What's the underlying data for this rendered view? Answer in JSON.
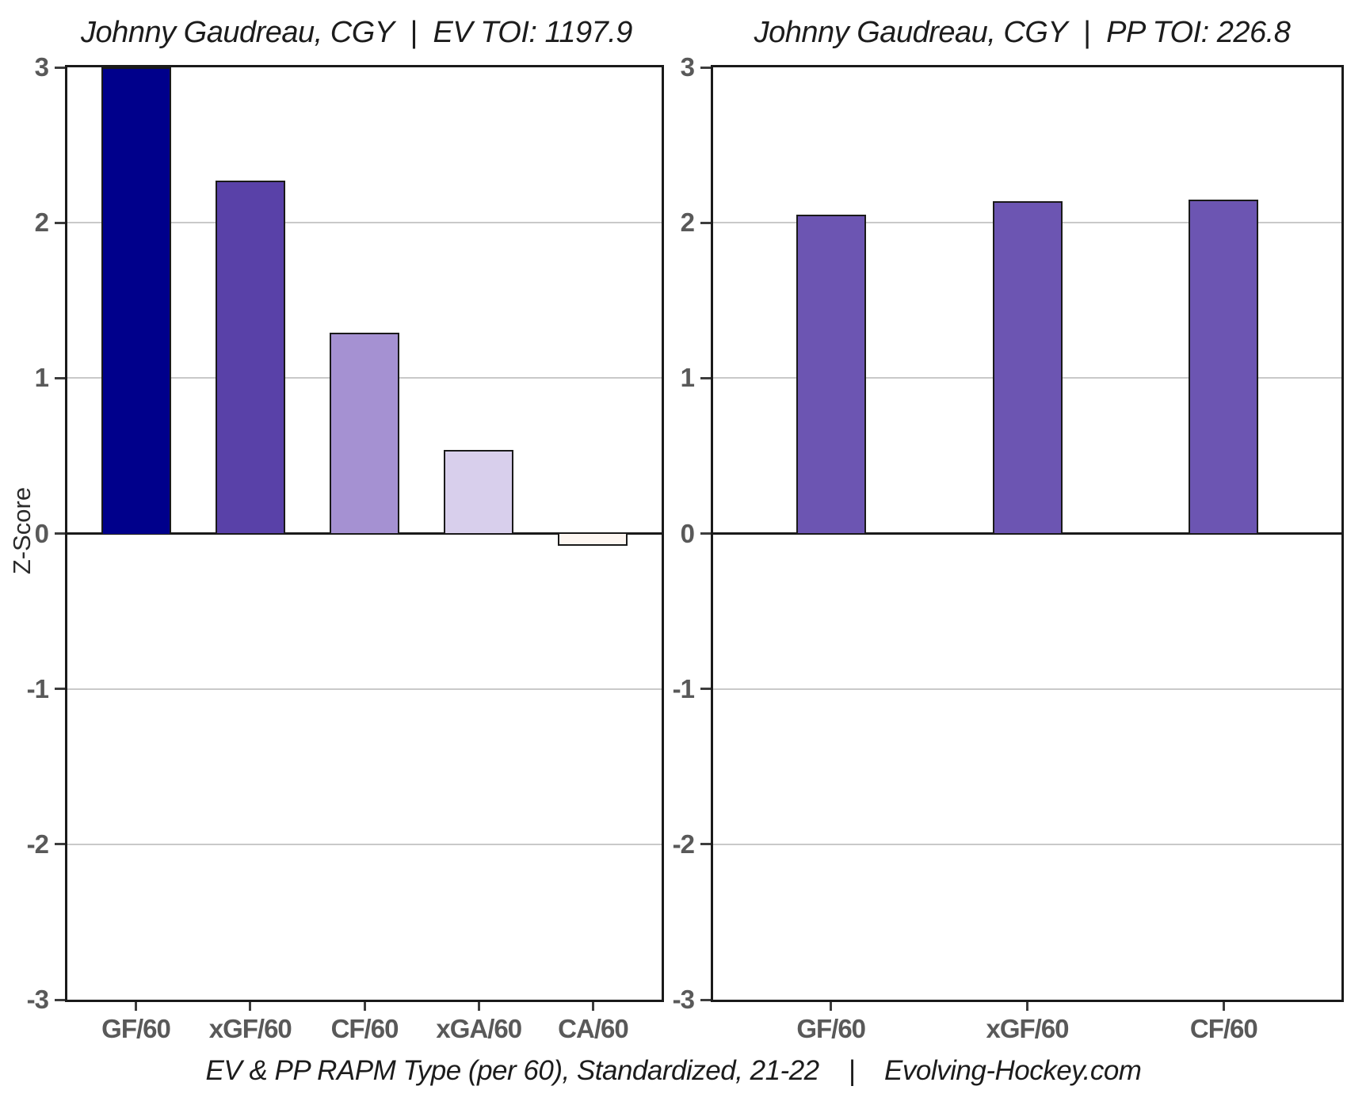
{
  "figure": {
    "y_axis_label": "Z-Score",
    "caption": "EV & PP RAPM Type (per 60), Standardized, 21-22    |    Evolving-Hockey.com"
  },
  "chart_data": [
    {
      "type": "bar",
      "title": "Johnny Gaudreau, CGY  |  EV TOI: 1197.9",
      "player": "Johnny Gaudreau",
      "team": "CGY",
      "strength": "EV",
      "toi": 1197.9,
      "categories": [
        "GF/60",
        "xGF/60",
        "CF/60",
        "xGA/60",
        "CA/60"
      ],
      "values": [
        3.0,
        2.27,
        1.29,
        0.54,
        -0.08
      ],
      "bar_colors": [
        "#00008B",
        "#5941A8",
        "#A591D2",
        "#D8CFEC",
        "#FDF6F1"
      ],
      "ylabel": "Z-Score",
      "ylim": [
        -3,
        3
      ],
      "yticks": [
        3,
        2,
        1,
        0,
        -1,
        -2,
        -3
      ],
      "grid": true,
      "legend": "none",
      "note": "GF/60 bar reaches top of axis (value at or above +3)"
    },
    {
      "type": "bar",
      "title": "Johnny Gaudreau, CGY  |  PP TOI: 226.8",
      "player": "Johnny Gaudreau",
      "team": "CGY",
      "strength": "PP",
      "toi": 226.8,
      "categories": [
        "GF/60",
        "xGF/60",
        "CF/60"
      ],
      "values": [
        2.05,
        2.14,
        2.15
      ],
      "bar_colors": [
        "#6C55B2",
        "#6C55B2",
        "#6C55B2"
      ],
      "ylabel": "Z-Score",
      "ylim": [
        -3,
        3
      ],
      "yticks": [
        3,
        2,
        1,
        0,
        -1,
        -2,
        -3
      ],
      "grid": true,
      "legend": "none"
    }
  ]
}
